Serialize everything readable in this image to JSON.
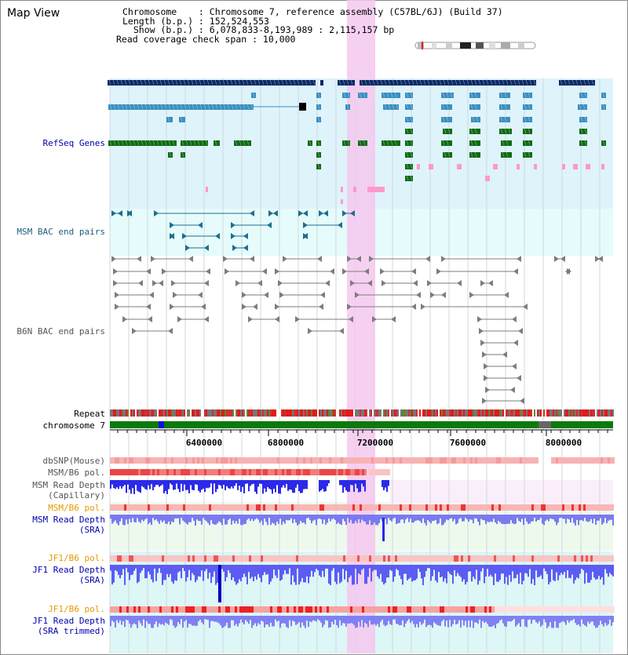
{
  "map": {
    "title": "Map View"
  },
  "info": {
    "chromosome": "Chromosome    : Chromosome 7, reference assembly (C57BL/6J) (Build 37)",
    "length": "Length (b.p.) : 152,524,553",
    "show": "  Show (b.p.) : 6,078,833-8,193,989 : 2,115,157 bp",
    "span": "Read coverage check span : 10,000"
  },
  "tracks": {
    "refseq": "RefSeq Genes",
    "msm_bac": "MSM BAC end pairs",
    "b6n_bac": "B6N BAC end pairs",
    "repeat": "Repeat",
    "chrom": "chromosome 7",
    "dbsnp": "dbSNP(Mouse)",
    "msm_pol": "MSM/B6 pol.",
    "msm_depth_cap": "MSM Read Depth",
    "msm_depth_cap_sub": "(Capillary)",
    "msm_pol2": "MSM/B6 pol.",
    "msm_depth_sra": "MSM Read Depth",
    "msm_depth_sra_sub": "(SRA)",
    "jf1_pol": "JF1/B6 pol.",
    "jf1_depth_sra": "JF1 Read Depth",
    "jf1_depth_sra_sub": "(SRA)",
    "jf1_pol2": "JF1/B6 pol.",
    "jf1_depth_trim": "JF1 Read Depth",
    "jf1_depth_trim_sub": "(SRA trimmed)"
  },
  "axis": {
    "ticks": [
      "6400000",
      "6800000",
      "7200000",
      "7600000",
      "8000000"
    ]
  },
  "colors": {
    "refseq_bg": "#dff3fb",
    "msm_bg": "#e6fbfb",
    "highlight": "#f4c8ee",
    "gene_dark": "#0a2a66",
    "gene_mid": "#3b8fc0",
    "gene_green": "#0e6b14",
    "gene_pink": "#ff99cc",
    "bac_msm": "#1f6d8f",
    "bac_b6n": "#7d7d7d",
    "repeat_red": "#e01b1b",
    "chrom_green": "#0a7a0a",
    "chrom_blue": "#1010e0",
    "snp_pink": "#f7b3b3",
    "pol_red": "#ec4545",
    "depth_blue": "#2a2ae8",
    "label_blue": "#0000aa",
    "label_orange": "#e69a00",
    "label_teal": "#1a5f7a"
  }
}
